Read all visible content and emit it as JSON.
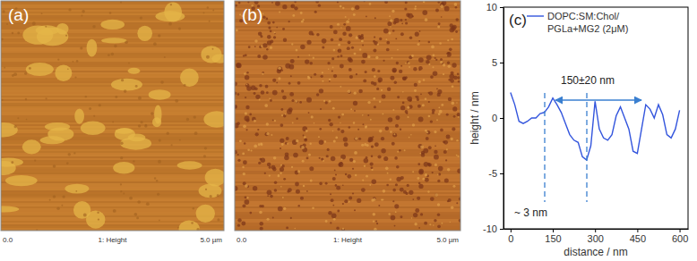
{
  "images": [
    {
      "label": "(a)",
      "footer": [
        "0.0",
        "1: Height",
        "5.0 µm"
      ]
    },
    {
      "label": "(b)",
      "footer": [
        "0.0",
        "1: Height",
        "5.0 µm"
      ]
    }
  ],
  "chart_data": {
    "type": "line",
    "x_label": "distance / nm",
    "y_label": "height / nm",
    "annotations": [
      "(c)",
      "150±20 nm",
      "~ 3 nm"
    ],
    "x": [
      0,
      15,
      30,
      45,
      60,
      75,
      90,
      105,
      120,
      135,
      150,
      165,
      180,
      195,
      210,
      225,
      240,
      255,
      270,
      285,
      300,
      315,
      330,
      345,
      360,
      375,
      390,
      405,
      420,
      435,
      450,
      465,
      480,
      495,
      510,
      525,
      540,
      555,
      570,
      585,
      600
    ],
    "series": [
      {
        "name": "DOPC:SM:Chol/\nPGLa+MG2 (2μM)",
        "color": "#3355dd",
        "values": [
          2.3,
          1.2,
          -0.3,
          -0.5,
          -0.3,
          0,
          0,
          0.4,
          0.5,
          1.0,
          1.8,
          1.2,
          0.5,
          -0.5,
          -1.5,
          -2.0,
          -2.2,
          -3.5,
          -3.8,
          -2.5,
          1.5,
          -1.0,
          -1.8,
          -2.0,
          -1.5,
          0.2,
          1.0,
          0,
          -1.0,
          -3.0,
          -3.2,
          -1.0,
          1.2,
          0.8,
          0,
          1.2,
          0.3,
          -1.5,
          -1.8,
          -1.0,
          0.7
        ]
      }
    ],
    "xlim": [
      -25,
      630
    ],
    "ylim": [
      -10,
      10
    ],
    "xticks": [
      0,
      150,
      300,
      450,
      600
    ],
    "yticks": [
      -10,
      -5,
      0,
      5,
      10
    ],
    "legend": "upper right"
  }
}
